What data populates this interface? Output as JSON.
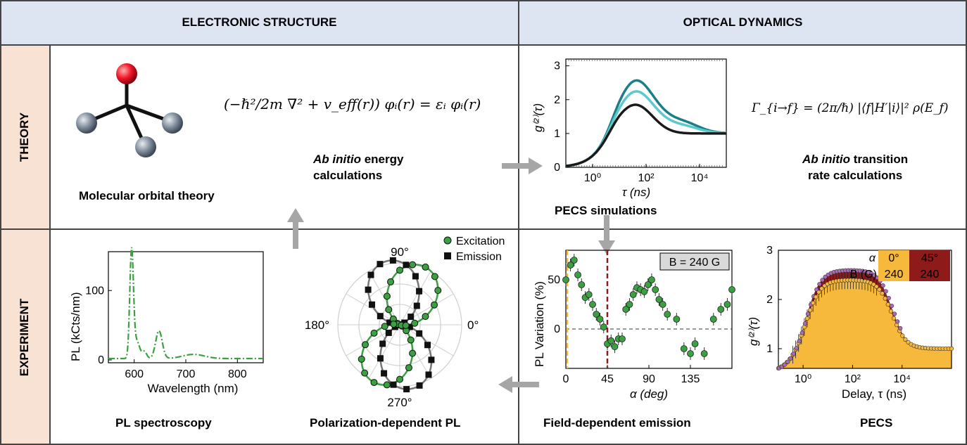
{
  "headers": {
    "electronic_structure": "ELECTRONIC STRUCTURE",
    "optical_dynamics": "OPTICAL DYNAMICS"
  },
  "rows": {
    "theory": "THEORY",
    "experiment": "EXPERIMENT"
  },
  "theory": {
    "molecular": "Molecular orbital theory",
    "ks_equation": "(−ℏ²/2m ∇² + v_eff(r)) φᵢ(r) = εᵢ φᵢ(r)",
    "abinitio_energy_1": "Ab initio",
    "abinitio_energy_2": "energy",
    "abinitio_energy_3": "calculations",
    "pecs_sim": "PECS simulations",
    "fermi_equation": "Γ_{i→f} = (2π/ℏ) |⟨f|H′|i⟩|² ρ(E_f)",
    "abinitio_rate_1": "Ab initio",
    "abinitio_rate_2": "transition",
    "abinitio_rate_3": "rate calculations"
  },
  "experiment": {
    "pl_spec": "PL spectroscopy",
    "polar_pl": "Polarization-dependent PL",
    "field_emission": "Field-dependent emission",
    "pecs": "PECS"
  },
  "colors": {
    "header_bg": "#dde5f2",
    "side_bg": "#f8e2d4",
    "green": "#3aa041",
    "teal_dark": "#1a7f86",
    "teal_light": "#5cc9cc",
    "orange": "#f6b93b",
    "maroon": "#8e1a1a",
    "arrow": "#a6a6a6"
  },
  "chart_data": [
    {
      "id": "pecs_sim",
      "type": "line",
      "ylabel": "g⁽²⁾(τ)",
      "xlabel": "τ (ns)",
      "xscale": "log",
      "xticks": [
        "10⁰",
        "10²",
        "10⁴"
      ],
      "yticks": [
        "0",
        "1",
        "2",
        "3"
      ],
      "xlim": [
        0.1,
        100000
      ],
      "ylim": [
        0,
        3.2
      ],
      "series": [
        {
          "color": "#1a7f86",
          "peak": 2.5,
          "shoulder": 1.45
        },
        {
          "color": "#5cc9cc",
          "peak": 2.2,
          "shoulder": 1.3
        },
        {
          "color": "#1a1a1a",
          "peak": 1.85,
          "shoulder": 1.0
        }
      ]
    },
    {
      "id": "pl_spectrum",
      "type": "line",
      "xlabel": "Wavelength (nm)",
      "ylabel": "PL (kCts/nm)",
      "xticks": [
        "600",
        "700",
        "800"
      ],
      "yticks": [
        "0",
        "100"
      ],
      "xlim": [
        550,
        850
      ],
      "ylim": [
        0,
        160
      ],
      "peaks": [
        {
          "x": 595,
          "y": 155
        },
        {
          "x": 648,
          "y": 40
        }
      ]
    },
    {
      "id": "polar",
      "type": "scatter",
      "angle_labels": [
        "90°",
        "180°",
        "0°",
        "270°"
      ],
      "legend": [
        "Excitation",
        "Emission"
      ]
    },
    {
      "id": "field_dep",
      "type": "scatter",
      "xlabel": "α (deg)",
      "ylabel": "PL Variation (%)",
      "xticks": [
        "0",
        "45",
        "90",
        "135"
      ],
      "yticks": [
        "0",
        "50"
      ],
      "xlim": [
        0,
        180
      ],
      "ylim": [
        -40,
        80
      ],
      "annotation": "B = 240 G",
      "x": [
        0,
        5,
        9,
        13,
        17,
        21,
        25,
        29,
        33,
        37,
        41,
        45,
        49,
        53,
        57,
        61,
        65,
        69,
        73,
        77,
        81,
        85,
        89,
        93,
        97,
        101,
        105,
        110,
        120,
        128,
        135,
        140,
        150,
        160,
        168,
        175,
        180
      ],
      "y": [
        50,
        65,
        70,
        55,
        45,
        32,
        35,
        25,
        15,
        10,
        2,
        -15,
        -12,
        -18,
        -10,
        -10,
        20,
        25,
        35,
        42,
        40,
        38,
        45,
        50,
        40,
        30,
        25,
        15,
        10,
        -20,
        -25,
        -15,
        -25,
        10,
        20,
        25,
        40
      ]
    },
    {
      "id": "pecs_exp",
      "type": "area",
      "xlabel": "Delay, τ (ns)",
      "ylabel": "g⁽²⁾(τ)",
      "xticks": [
        "10⁰",
        "10²",
        "10⁴"
      ],
      "yticks": [
        "1",
        "2",
        "3"
      ],
      "ylim": [
        0.6,
        3.0
      ],
      "legend": {
        "alpha_label": "α",
        "b_label": "B (G)",
        "alpha": [
          "0°",
          "45°"
        ],
        "b": [
          "240",
          "240"
        ]
      }
    }
  ]
}
